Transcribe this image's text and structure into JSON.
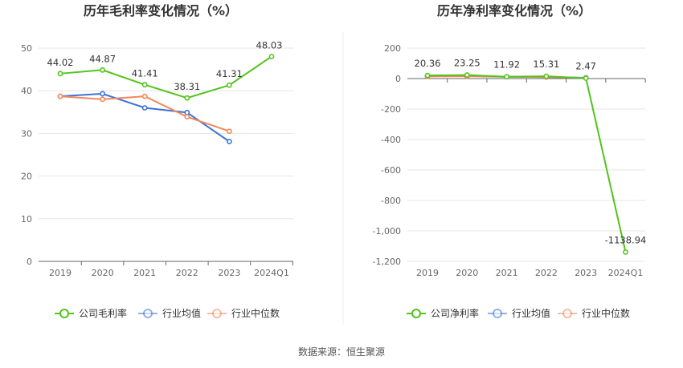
{
  "source_text": "数据来源：恒生聚源",
  "chart_data": [
    {
      "type": "line",
      "title": "历年毛利率变化情况（%）",
      "categories": [
        "2019",
        "2020",
        "2021",
        "2022",
        "2023",
        "2024Q1"
      ],
      "ylim": [
        0,
        50
      ],
      "yticks": [
        "0",
        "10",
        "20",
        "30",
        "40",
        "50"
      ],
      "grid": true,
      "legend_position": "bottom",
      "series": [
        {
          "name": "公司毛利率",
          "color": "#52c41a",
          "values": [
            44.02,
            44.87,
            41.41,
            38.31,
            41.31,
            48.03
          ],
          "labels": [
            "44.02",
            "44.87",
            "41.41",
            "38.31",
            "41.31",
            "48.03"
          ]
        },
        {
          "name": "行业均值",
          "color": "#3b73d9",
          "values": [
            38.7,
            39.3,
            36.0,
            34.9,
            28.1,
            null
          ]
        },
        {
          "name": "行业中位数",
          "color": "#f0885c",
          "values": [
            38.7,
            38.0,
            38.7,
            33.9,
            30.5,
            null
          ]
        }
      ]
    },
    {
      "type": "line",
      "title": "历年净利率变化情况（%）",
      "categories": [
        "2019",
        "2020",
        "2021",
        "2022",
        "2023",
        "2024Q1"
      ],
      "ylim": [
        -1200,
        200
      ],
      "yticks": [
        "-1,200",
        "-1,000",
        "-800",
        "-600",
        "-400",
        "-200",
        "0",
        "200"
      ],
      "grid": true,
      "legend_position": "bottom",
      "series": [
        {
          "name": "公司净利率",
          "color": "#52c41a",
          "values": [
            20.36,
            23.25,
            11.92,
            15.31,
            2.47,
            -1138.94
          ],
          "labels": [
            "20.36",
            "23.25",
            "11.92",
            "15.31",
            "2.47",
            "-1138.94"
          ]
        },
        {
          "name": "行业均值",
          "color": "#3b73d9",
          "values": [
            16,
            17,
            12,
            10,
            5,
            null
          ]
        },
        {
          "name": "行业中位数",
          "color": "#f0885c",
          "values": [
            14,
            15,
            12,
            10,
            4,
            null
          ]
        }
      ]
    }
  ]
}
